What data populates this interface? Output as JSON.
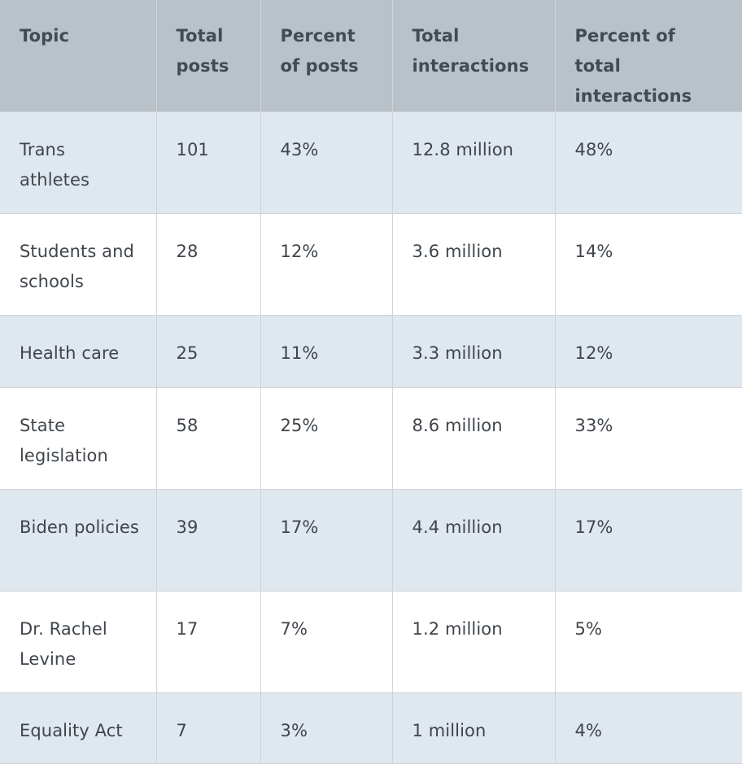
{
  "table": {
    "headers": [
      "Topic",
      "Total posts",
      "Percent of posts",
      "Total interactions",
      "Percent of total interactions"
    ],
    "rows": [
      [
        "Trans athletes",
        "101",
        "43%",
        "12.8 million",
        "48%"
      ],
      [
        "Students and schools",
        "28",
        "12%",
        "3.6 million",
        "14%"
      ],
      [
        "Health care",
        "25",
        "11%",
        "3.3 million",
        "12%"
      ],
      [
        "State legislation",
        "58",
        "25%",
        "8.6 million",
        "33%"
      ],
      [
        "Biden policies",
        "39",
        "17%",
        "4.4 million",
        "17%"
      ],
      [
        "Dr. Rachel Levine",
        "17",
        "7%",
        "1.2 million",
        "5%"
      ],
      [
        "Equality Act",
        "7",
        "3%",
        "1 million",
        "4%"
      ]
    ]
  }
}
